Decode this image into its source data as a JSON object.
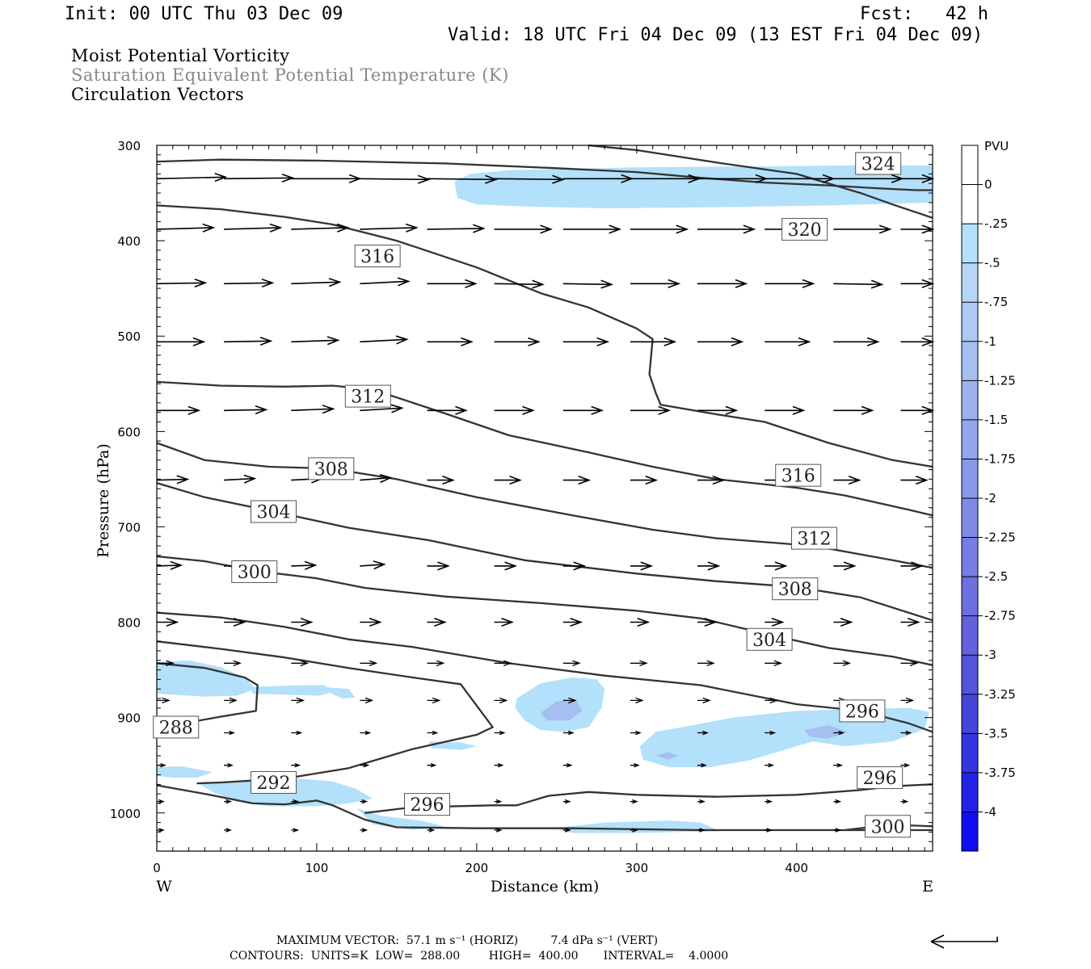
{
  "header": {
    "init": "Init: 00 UTC Thu 03 Dec 09",
    "fcst": "Fcst:   42 h",
    "valid": "Valid: 18 UTC Fri 04 Dec 09 (13 EST Fri 04 Dec 09)"
  },
  "titles": {
    "line1": "Moist Potential Vorticity",
    "line2": "Saturation Equivalent Potential Temperature (K)",
    "line3": "Circulation Vectors"
  },
  "footer": {
    "line1": "MAXIMUM VECTOR:  57.1 m s⁻¹ (HORIZ)         7.4 dPa s⁻¹ (VERT)",
    "line2": "CONTOURS:  UNITS=K  LOW=  288.00        HIGH=  400.00       INTERVAL=    4.0000"
  },
  "colors": {
    "contour": "#333333",
    "fill_light": "#b3e0fa",
    "fill_mid": "#a5bff2",
    "text_gray": "#888888"
  },
  "chart_data": {
    "type": "contour",
    "xlabel": "Distance (km)",
    "ylabel": "Pressure (hPa)",
    "xlim": [
      0,
      485
    ],
    "ylim": [
      1040,
      300
    ],
    "x_ticks": [
      0,
      100,
      200,
      300,
      400
    ],
    "y_ticks": [
      300,
      400,
      500,
      600,
      700,
      800,
      900,
      1000
    ],
    "x_end_labels": [
      "W",
      "E"
    ],
    "colorbar": {
      "unit": "PVU",
      "labels": [
        "0",
        "-.25",
        "-.5",
        "-.75",
        "-1",
        "-1.25",
        "-1.5",
        "-1.75",
        "-2",
        "-2.25",
        "-2.5",
        "-2.75",
        "-3",
        "-3.25",
        "-3.5",
        "-3.75",
        "-4"
      ],
      "colors": [
        "#ffffff",
        "#b3e0fa",
        "#b6d6f8",
        "#aec9f6",
        "#a5bff2",
        "#9cb2ef",
        "#93a5ec",
        "#8a98e9",
        "#808ae6",
        "#777de3",
        "#6d70e0",
        "#6262dd",
        "#5454db",
        "#4545dc",
        "#3535df",
        "#2222e6",
        "#0f0ff0"
      ]
    },
    "contour_labels": [
      {
        "text": "324",
        "x": 451,
        "p": 319
      },
      {
        "text": "320",
        "x": 405,
        "p": 388
      },
      {
        "text": "316",
        "x": 138,
        "p": 416
      },
      {
        "text": "312",
        "x": 132,
        "p": 563
      },
      {
        "text": "316",
        "x": 401,
        "p": 646
      },
      {
        "text": "308",
        "x": 109,
        "p": 639
      },
      {
        "text": "304",
        "x": 73,
        "p": 684
      },
      {
        "text": "312",
        "x": 411,
        "p": 712
      },
      {
        "text": "300",
        "x": 61,
        "p": 747
      },
      {
        "text": "308",
        "x": 399,
        "p": 765
      },
      {
        "text": "304",
        "x": 383,
        "p": 818
      },
      {
        "text": "296",
        "x": 441,
        "p": 893
      },
      {
        "text": "288",
        "x": 12,
        "p": 910
      },
      {
        "text": "292",
        "x": 73,
        "p": 968
      },
      {
        "text": "296",
        "x": 452,
        "p": 963
      },
      {
        "text": "296",
        "x": 169,
        "p": 991
      },
      {
        "text": "300",
        "x": 457,
        "p": 1014
      }
    ]
  }
}
